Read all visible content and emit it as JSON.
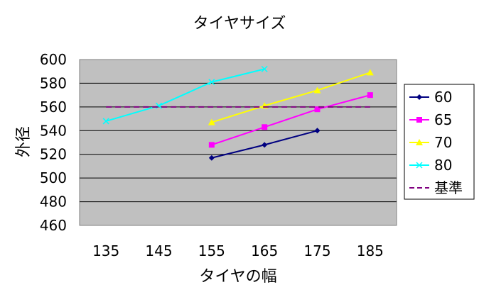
{
  "chart_data": {
    "type": "line",
    "title": "タイヤサイズ",
    "xlabel": "タイヤの幅",
    "ylabel": "外径",
    "categories": [
      "135",
      "145",
      "155",
      "165",
      "175",
      "185"
    ],
    "ylim": [
      460,
      600
    ],
    "yticks": [
      "460",
      "480",
      "500",
      "520",
      "540",
      "560",
      "580",
      "600"
    ],
    "grid": true,
    "legend_position": "right",
    "series": [
      {
        "name": "60",
        "color": "#000080",
        "marker": "diamond",
        "dashed": false,
        "values": [
          null,
          null,
          517,
          528,
          540,
          null
        ]
      },
      {
        "name": "65",
        "color": "#ff00ff",
        "marker": "square",
        "dashed": false,
        "values": [
          null,
          null,
          528,
          543,
          558,
          570
        ]
      },
      {
        "name": "70",
        "color": "#ffff00",
        "marker": "triangle",
        "dashed": false,
        "values": [
          null,
          null,
          547,
          561,
          574,
          589
        ]
      },
      {
        "name": "80",
        "color": "#00ffff",
        "marker": "x",
        "dashed": false,
        "values": [
          548,
          561,
          581,
          592,
          null,
          null
        ]
      },
      {
        "name": "基準",
        "color": "#800080",
        "marker": "none",
        "dashed": true,
        "values": [
          560,
          560,
          560,
          560,
          560,
          560
        ]
      }
    ],
    "colors": {
      "plot_bg": "#c0c0c0",
      "gridline": "#000000"
    }
  }
}
